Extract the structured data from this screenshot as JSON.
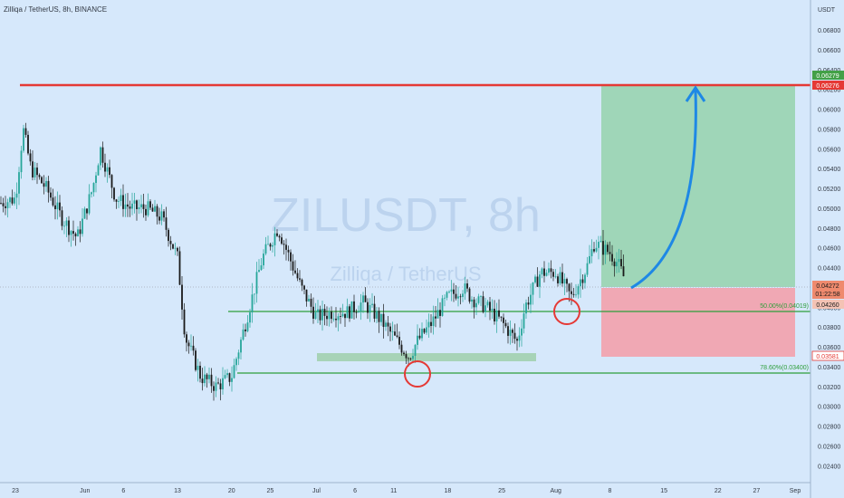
{
  "header": {
    "symbol_line": "Zilliqa / TetherUS, 8h, BINANCE"
  },
  "axis": {
    "currency_label": "USDT"
  },
  "watermark": {
    "line1": "ZILUSDT, 8h",
    "line2": "Zilliqa / TetherUS"
  },
  "price_tags": {
    "target_label": "0.06279",
    "resistance_label": "0.06276",
    "current_price_label": "0.04272",
    "countdown_label": "01:22:58",
    "secondary_label": "0.04260",
    "stop_label": "0.03581"
  },
  "fib_labels": {
    "fib50": "50.00%(0.04019)",
    "fib786": "78.60%(0.03400)"
  },
  "colors": {
    "background": "#d6e8fb",
    "candle_up": "#26a69a",
    "candle_down": "#1a1a1a",
    "resistance_line": "#e53935",
    "fib_line": "#2e9e3a",
    "target_zone": "#9fd6b8",
    "stop_zone": "#f0a8b4",
    "arrow": "#1e88e5",
    "circle": "#e53935"
  },
  "chart_data": {
    "type": "candlestick",
    "title": "ZILUSDT, 8h",
    "ylim": [
      0.0236,
      0.07
    ],
    "y_ticks": [
      "0.06800",
      "0.06600",
      "0.06400",
      "0.06200",
      "0.06000",
      "0.05800",
      "0.05600",
      "0.05400",
      "0.05200",
      "0.05000",
      "0.04800",
      "0.04600",
      "0.04400",
      "0.04000",
      "0.03800",
      "0.03600",
      "0.03400",
      "0.03200",
      "0.03000",
      "0.02800",
      "0.02600",
      "0.02400"
    ],
    "x_ticks": [
      "23",
      "Jun",
      "6",
      "13",
      "20",
      "25",
      "Jul",
      "6",
      "11",
      "18",
      "25",
      "Aug",
      "8",
      "15",
      "22",
      "27",
      "Sep"
    ],
    "x_tick_dates": [
      "2021-05-23",
      "2021-06-01",
      "2021-06-06",
      "2021-06-13",
      "2021-06-20",
      "2021-06-25",
      "2021-07-01",
      "2021-07-06",
      "2021-07-11",
      "2021-07-18",
      "2021-07-25",
      "2021-08-01",
      "2021-08-08",
      "2021-08-15",
      "2021-08-22",
      "2021-08-27",
      "2021-09-01"
    ],
    "x_range": [
      "2021-05-21",
      "2021-09-01"
    ],
    "close_path": [
      [
        "2021-05-21",
        0.0505
      ],
      [
        "2021-05-23",
        0.051
      ],
      [
        "2021-05-24",
        0.058
      ],
      [
        "2021-05-25",
        0.054
      ],
      [
        "2021-05-27",
        0.052
      ],
      [
        "2021-05-29",
        0.049
      ],
      [
        "2021-05-31",
        0.047
      ],
      [
        "2021-06-02",
        0.052
      ],
      [
        "2021-06-03",
        0.056
      ],
      [
        "2021-06-05",
        0.051
      ],
      [
        "2021-06-07",
        0.05
      ],
      [
        "2021-06-09",
        0.05
      ],
      [
        "2021-06-11",
        0.049
      ],
      [
        "2021-06-13",
        0.045
      ],
      [
        "2021-06-14",
        0.037
      ],
      [
        "2021-06-16",
        0.033
      ],
      [
        "2021-06-18",
        0.032
      ],
      [
        "2021-06-20",
        0.033
      ],
      [
        "2021-06-22",
        0.039
      ],
      [
        "2021-06-24",
        0.045
      ],
      [
        "2021-06-26",
        0.048
      ],
      [
        "2021-06-27",
        0.046
      ],
      [
        "2021-06-29",
        0.042
      ],
      [
        "2021-07-01",
        0.039
      ],
      [
        "2021-07-03",
        0.0395
      ],
      [
        "2021-07-05",
        0.0395
      ],
      [
        "2021-07-07",
        0.0405
      ],
      [
        "2021-07-09",
        0.039
      ],
      [
        "2021-07-11",
        0.037
      ],
      [
        "2021-07-13",
        0.035
      ],
      [
        "2021-07-14",
        0.0365
      ],
      [
        "2021-07-16",
        0.0385
      ],
      [
        "2021-07-18",
        0.041
      ],
      [
        "2021-07-20",
        0.042
      ],
      [
        "2021-07-21",
        0.041
      ],
      [
        "2021-07-23",
        0.04
      ],
      [
        "2021-07-25",
        0.0385
      ],
      [
        "2021-07-27",
        0.0365
      ],
      [
        "2021-07-28",
        0.04
      ],
      [
        "2021-07-30",
        0.0435
      ],
      [
        "2021-08-01",
        0.0435
      ],
      [
        "2021-08-03",
        0.041
      ],
      [
        "2021-08-05",
        0.044
      ],
      [
        "2021-08-06",
        0.0465
      ],
      [
        "2021-08-08",
        0.0455
      ],
      [
        "2021-08-09",
        0.0445
      ],
      [
        "2021-08-10",
        0.0427
      ]
    ],
    "levels": {
      "resistance": 0.06276,
      "target": 0.06279,
      "current": 0.04272,
      "fib_50": 0.04019,
      "fib_786": 0.034,
      "stop": 0.03581,
      "support_zone": [
        0.0352,
        0.0358
      ]
    },
    "position": {
      "start": "2021-08-06",
      "end": "2021-08-30",
      "entry": 0.04272,
      "target": 0.06279,
      "stop": 0.03581
    },
    "markers": [
      {
        "type": "circle",
        "date": "2021-07-12",
        "price": 0.0342
      },
      {
        "type": "circle",
        "date": "2021-08-03",
        "price": 0.041
      }
    ],
    "arrow": {
      "from_date": "2021-08-10",
      "from_price": 0.0427,
      "to_date": "2021-08-19",
      "to_price": 0.0622
    },
    "grid": false
  }
}
